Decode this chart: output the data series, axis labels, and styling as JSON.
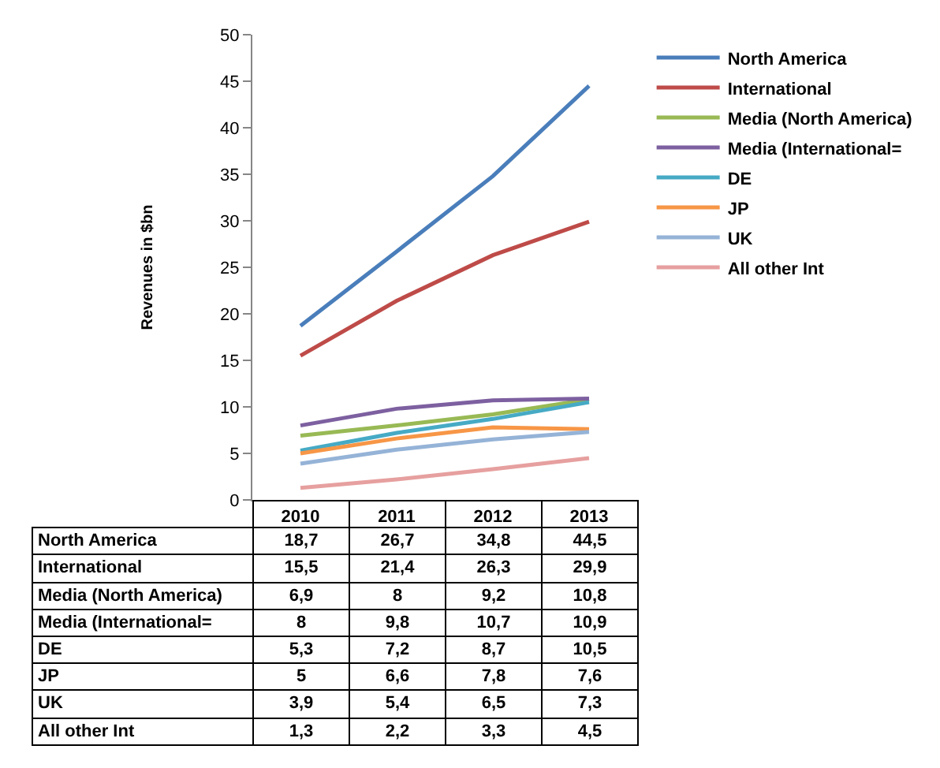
{
  "chart_data": {
    "type": "line",
    "ylabel": "Revenues in $bn",
    "categories": [
      "2010",
      "2011",
      "2012",
      "2013"
    ],
    "series": [
      {
        "name": "North America",
        "color": "#4a7ebb",
        "values": [
          18.7,
          26.7,
          34.8,
          44.5
        ],
        "value_labels": [
          "18,7",
          "26,7",
          "34,8",
          "44,5"
        ]
      },
      {
        "name": "International",
        "color": "#be4b48",
        "values": [
          15.5,
          21.4,
          26.3,
          29.9
        ],
        "value_labels": [
          "15,5",
          "21,4",
          "26,3",
          "29,9"
        ]
      },
      {
        "name": "Media (North America)",
        "color": "#98b954",
        "values": [
          6.9,
          8,
          9.2,
          10.8
        ],
        "value_labels": [
          "6,9",
          "8",
          "9,2",
          "10,8"
        ]
      },
      {
        "name": "Media (International=",
        "color": "#7d60a0",
        "values": [
          8,
          9.8,
          10.7,
          10.9
        ],
        "value_labels": [
          "8",
          "9,8",
          "10,7",
          "10,9"
        ]
      },
      {
        "name": "DE",
        "color": "#46aac5",
        "values": [
          5.3,
          7.2,
          8.7,
          10.5
        ],
        "value_labels": [
          "5,3",
          "7,2",
          "8,7",
          "10,5"
        ]
      },
      {
        "name": "JP",
        "color": "#f79646",
        "values": [
          5,
          6.6,
          7.8,
          7.6
        ],
        "value_labels": [
          "5",
          "6,6",
          "7,8",
          "7,6"
        ]
      },
      {
        "name": "UK",
        "color": "#95b3d7",
        "values": [
          3.9,
          5.4,
          6.5,
          7.3
        ],
        "value_labels": [
          "3,9",
          "5,4",
          "6,5",
          "7,3"
        ]
      },
      {
        "name": "All other Int",
        "color": "#e6a09f",
        "values": [
          1.3,
          2.2,
          3.3,
          4.5
        ],
        "value_labels": [
          "1,3",
          "2,2",
          "3,3",
          "4,5"
        ]
      }
    ],
    "ylim": [
      0,
      50
    ],
    "yticks": [
      0,
      5,
      10,
      15,
      20,
      25,
      30,
      35,
      40,
      45,
      50
    ],
    "grid": false,
    "legend": "right",
    "marker": "none",
    "line_style": "solid"
  }
}
